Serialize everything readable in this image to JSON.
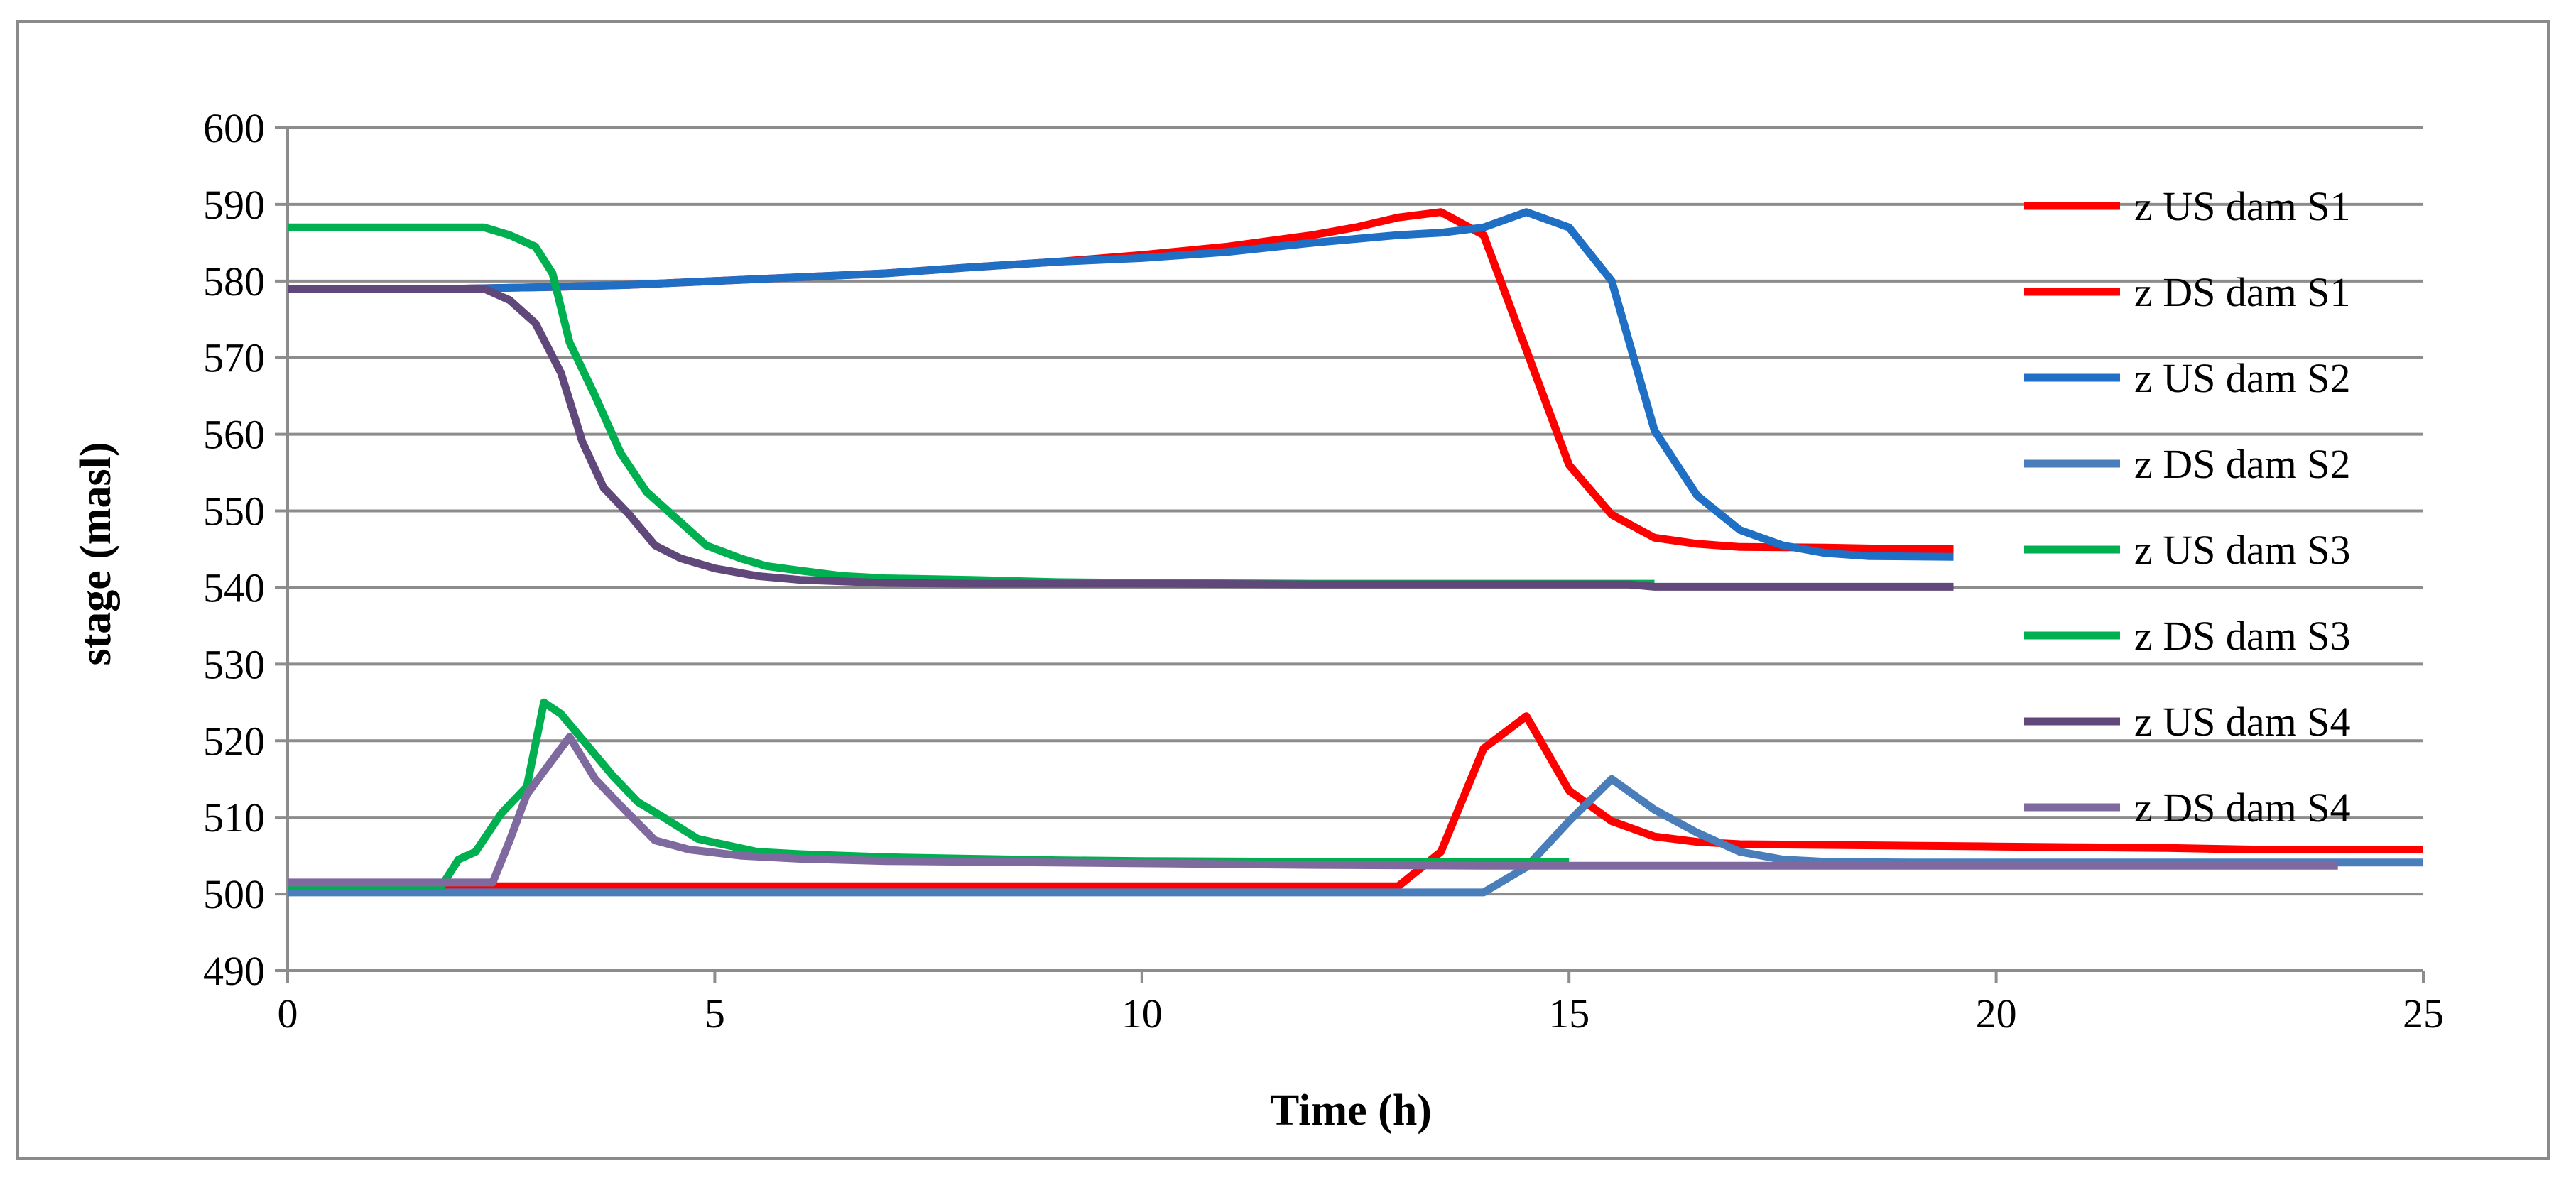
{
  "chart_data": {
    "type": "line",
    "title": "",
    "xlabel": "Time (h)",
    "ylabel": "stage (masl)",
    "xlim": [
      0,
      25
    ],
    "ylim": [
      490,
      600
    ],
    "x_ticks": [
      0,
      5,
      10,
      15,
      20,
      25
    ],
    "y_ticks": [
      490,
      500,
      510,
      520,
      530,
      540,
      550,
      560,
      570,
      580,
      590,
      600
    ],
    "grid": "horizontal",
    "legend_position": "right",
    "series": [
      {
        "name": "z US dam S1",
        "color": "#ff0000",
        "points": [
          [
            0,
            579
          ],
          [
            2,
            579
          ],
          [
            3,
            579.2
          ],
          [
            4,
            579.5
          ],
          [
            5,
            580
          ],
          [
            6,
            580.5
          ],
          [
            7,
            581
          ],
          [
            8,
            581.8
          ],
          [
            9,
            582.5
          ],
          [
            10,
            583.4
          ],
          [
            11,
            584.5
          ],
          [
            12,
            586
          ],
          [
            12.5,
            587
          ],
          [
            13,
            588.3
          ],
          [
            13.5,
            589
          ],
          [
            14,
            586
          ],
          [
            14.5,
            571
          ],
          [
            15,
            556
          ],
          [
            15.5,
            549.5
          ],
          [
            16,
            546.5
          ],
          [
            16.5,
            545.7
          ],
          [
            17,
            545.3
          ],
          [
            18,
            545.2
          ],
          [
            19,
            545
          ],
          [
            19.5,
            545
          ]
        ]
      },
      {
        "name": "z DS dam S1",
        "color": "#ff0000",
        "points": [
          [
            0,
            501
          ],
          [
            13,
            501
          ],
          [
            13.5,
            505.5
          ],
          [
            14,
            519
          ],
          [
            14.5,
            523.2
          ],
          [
            15,
            513.5
          ],
          [
            15.5,
            509.5
          ],
          [
            16,
            507.5
          ],
          [
            16.5,
            506.8
          ],
          [
            17,
            506.5
          ],
          [
            18,
            506.4
          ],
          [
            19,
            506.3
          ],
          [
            20,
            506.2
          ],
          [
            21,
            506.1
          ],
          [
            22,
            506
          ],
          [
            23,
            505.8
          ],
          [
            25,
            505.8
          ]
        ]
      },
      {
        "name": "z US dam S2",
        "color": "#1f6fc5",
        "points": [
          [
            0,
            579
          ],
          [
            2,
            579
          ],
          [
            3,
            579.2
          ],
          [
            4,
            579.5
          ],
          [
            5,
            580
          ],
          [
            6,
            580.5
          ],
          [
            7,
            581
          ],
          [
            8,
            581.8
          ],
          [
            9,
            582.5
          ],
          [
            10,
            583
          ],
          [
            11,
            583.8
          ],
          [
            12,
            585
          ],
          [
            13,
            586
          ],
          [
            13.5,
            586.3
          ],
          [
            14,
            587
          ],
          [
            14.5,
            589
          ],
          [
            15,
            587
          ],
          [
            15.5,
            580
          ],
          [
            16,
            560.5
          ],
          [
            16.5,
            552
          ],
          [
            17,
            547.5
          ],
          [
            17.5,
            545.5
          ],
          [
            18,
            544.5
          ],
          [
            18.5,
            544.1
          ],
          [
            19.5,
            544
          ]
        ]
      },
      {
        "name": "z DS dam S2",
        "color": "#4a7ebb",
        "points": [
          [
            0,
            500.2
          ],
          [
            13,
            500.2
          ],
          [
            14,
            500.2
          ],
          [
            14.5,
            503.5
          ],
          [
            15,
            509.5
          ],
          [
            15.5,
            515
          ],
          [
            16,
            511
          ],
          [
            16.5,
            508
          ],
          [
            17,
            505.5
          ],
          [
            17.5,
            504.5
          ],
          [
            18,
            504.2
          ],
          [
            19,
            504.1
          ],
          [
            21,
            504.1
          ],
          [
            25,
            504.1
          ]
        ]
      },
      {
        "name": "z US dam S3",
        "color": "#00b050",
        "points": [
          [
            0,
            587
          ],
          [
            2.3,
            587
          ],
          [
            2.6,
            586
          ],
          [
            2.9,
            584.5
          ],
          [
            3.1,
            581
          ],
          [
            3.3,
            572
          ],
          [
            3.6,
            565
          ],
          [
            3.9,
            557.5
          ],
          [
            4.2,
            552.5
          ],
          [
            4.6,
            548.5
          ],
          [
            4.9,
            545.5
          ],
          [
            5.3,
            543.8
          ],
          [
            5.6,
            542.8
          ],
          [
            6,
            542.2
          ],
          [
            6.5,
            541.5
          ],
          [
            7,
            541.2
          ],
          [
            8,
            541
          ],
          [
            9,
            540.7
          ],
          [
            10,
            540.6
          ],
          [
            12,
            540.5
          ],
          [
            14,
            540.5
          ],
          [
            16,
            540.5
          ]
        ]
      },
      {
        "name": "z DS dam S3",
        "color": "#00b050",
        "points": [
          [
            0,
            501
          ],
          [
            1.8,
            501
          ],
          [
            2,
            504.5
          ],
          [
            2.2,
            505.5
          ],
          [
            2.5,
            510.5
          ],
          [
            2.8,
            514
          ],
          [
            3,
            525
          ],
          [
            3.2,
            523.5
          ],
          [
            3.5,
            519.5
          ],
          [
            3.8,
            515.5
          ],
          [
            4.1,
            512
          ],
          [
            4.4,
            510
          ],
          [
            4.8,
            507.2
          ],
          [
            5.5,
            505.5
          ],
          [
            6,
            505.2
          ],
          [
            7,
            504.8
          ],
          [
            8,
            504.6
          ],
          [
            9,
            504.4
          ],
          [
            10,
            504.3
          ],
          [
            12,
            504.2
          ],
          [
            14,
            504.2
          ],
          [
            15,
            504.2
          ]
        ]
      },
      {
        "name": "z US dam S4",
        "color": "#60497a",
        "points": [
          [
            0,
            579
          ],
          [
            2.3,
            579
          ],
          [
            2.6,
            577.5
          ],
          [
            2.9,
            574.5
          ],
          [
            3.2,
            568
          ],
          [
            3.45,
            559
          ],
          [
            3.7,
            553
          ],
          [
            4,
            549.5
          ],
          [
            4.3,
            545.5
          ],
          [
            4.6,
            543.8
          ],
          [
            5,
            542.5
          ],
          [
            5.5,
            541.5
          ],
          [
            6,
            541
          ],
          [
            7,
            540.6
          ],
          [
            8,
            540.5
          ],
          [
            10,
            540.5
          ],
          [
            12,
            540.4
          ],
          [
            14,
            540.4
          ],
          [
            15.7,
            540.4
          ],
          [
            16,
            540.1
          ],
          [
            19.5,
            540.1
          ]
        ]
      },
      {
        "name": "z DS dam S4",
        "color": "#7f6aa0",
        "points": [
          [
            0,
            501.5
          ],
          [
            2.2,
            501.5
          ],
          [
            2.4,
            501.5
          ],
          [
            2.6,
            507
          ],
          [
            2.8,
            513
          ],
          [
            3,
            516
          ],
          [
            3.3,
            520.5
          ],
          [
            3.6,
            515
          ],
          [
            3.9,
            511.5
          ],
          [
            4.3,
            507
          ],
          [
            4.7,
            505.8
          ],
          [
            5.3,
            505
          ],
          [
            6,
            504.6
          ],
          [
            7,
            504.3
          ],
          [
            8,
            504.2
          ],
          [
            10,
            504
          ],
          [
            12,
            503.8
          ],
          [
            14,
            503.7
          ],
          [
            16,
            503.7
          ],
          [
            18,
            503.7
          ],
          [
            20,
            503.7
          ],
          [
            22,
            503.7
          ],
          [
            24,
            503.7
          ]
        ]
      }
    ]
  }
}
